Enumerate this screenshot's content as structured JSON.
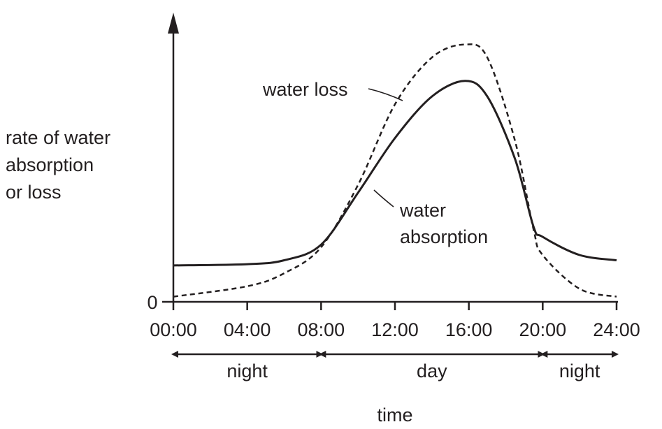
{
  "chart_data": {
    "type": "line",
    "title": "",
    "xlabel": "time",
    "ylabel_lines": [
      "rate of water",
      "absorption",
      "or loss"
    ],
    "y_zero_label": "0",
    "x_ticks": [
      "00:00",
      "04:00",
      "08:00",
      "12:00",
      "16:00",
      "20:00",
      "24:00"
    ],
    "xlim": [
      0,
      24
    ],
    "ylim": [
      0,
      10
    ],
    "series": [
      {
        "name": "water absorption",
        "style": "solid",
        "points": [
          [
            0,
            1.4
          ],
          [
            4,
            1.45
          ],
          [
            6,
            1.6
          ],
          [
            8,
            2.2
          ],
          [
            10,
            4.2
          ],
          [
            12,
            6.3
          ],
          [
            14,
            7.9
          ],
          [
            15.8,
            8.5
          ],
          [
            17,
            7.9
          ],
          [
            18.5,
            5.5
          ],
          [
            19.5,
            2.9
          ],
          [
            20,
            2.5
          ],
          [
            22,
            1.8
          ],
          [
            24,
            1.6
          ]
        ]
      },
      {
        "name": "water loss",
        "style": "dashed",
        "points": [
          [
            0,
            0.2
          ],
          [
            4,
            0.6
          ],
          [
            6,
            1.1
          ],
          [
            8,
            2.1
          ],
          [
            10,
            4.5
          ],
          [
            12,
            7.6
          ],
          [
            14,
            9.4
          ],
          [
            15.8,
            9.9
          ],
          [
            17,
            9.4
          ],
          [
            18.5,
            6.2
          ],
          [
            19.5,
            2.8
          ],
          [
            20,
            1.8
          ],
          [
            22,
            0.5
          ],
          [
            24,
            0.2
          ]
        ]
      }
    ],
    "periods": [
      {
        "label": "night",
        "start": 0,
        "end": 8
      },
      {
        "label": "day",
        "start": 8,
        "end": 20
      },
      {
        "label": "night",
        "start": 20,
        "end": 24
      }
    ],
    "grid": false,
    "legend": "none"
  }
}
